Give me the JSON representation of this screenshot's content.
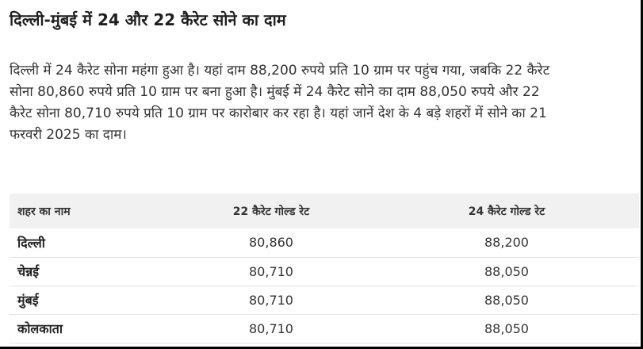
{
  "heading": "दिल्ली-मुंबई में 24 और 22 कैरेट सोने का दाम",
  "paragraph": {
    "lines": [
      "दिल्ली में 24 कैरेट सोना महंगा हुआ है। यहां दाम 88,200 रुपये प्रति 10 ग्राम पर पहुंच गया, जबकि 22 कैरेट",
      "सोना 80,860 रुपये प्रति 10 ग्राम पर बना हुआ है। मुंबई में 24 कैरेट सोने का दाम 88,050 रुपये और 22",
      "कैरेट सोना 80,710 रुपये प्रति 10 ग्राम पर कारोबार कर रहा है। यहां जानें देश के 4 बड़े शहरों में सोने का 21",
      "फरवरी 2025  का दाम।"
    ]
  },
  "table": {
    "headers": [
      "शहर का नाम",
      "22 कैरेट गोल्ड रेट",
      "24 कैरेट गोल्ड रेट"
    ],
    "rows": [
      {
        "city": "दिल्ली",
        "rate22": "80,860",
        "rate24": "88,200"
      },
      {
        "city": "चेन्नई",
        "rate22": "80,710",
        "rate24": "88,050"
      },
      {
        "city": "मुंबई",
        "rate22": "80,710",
        "rate24": "88,050"
      },
      {
        "city": "कोलकाता",
        "rate22": "80,710",
        "rate24": "88,050"
      }
    ]
  }
}
